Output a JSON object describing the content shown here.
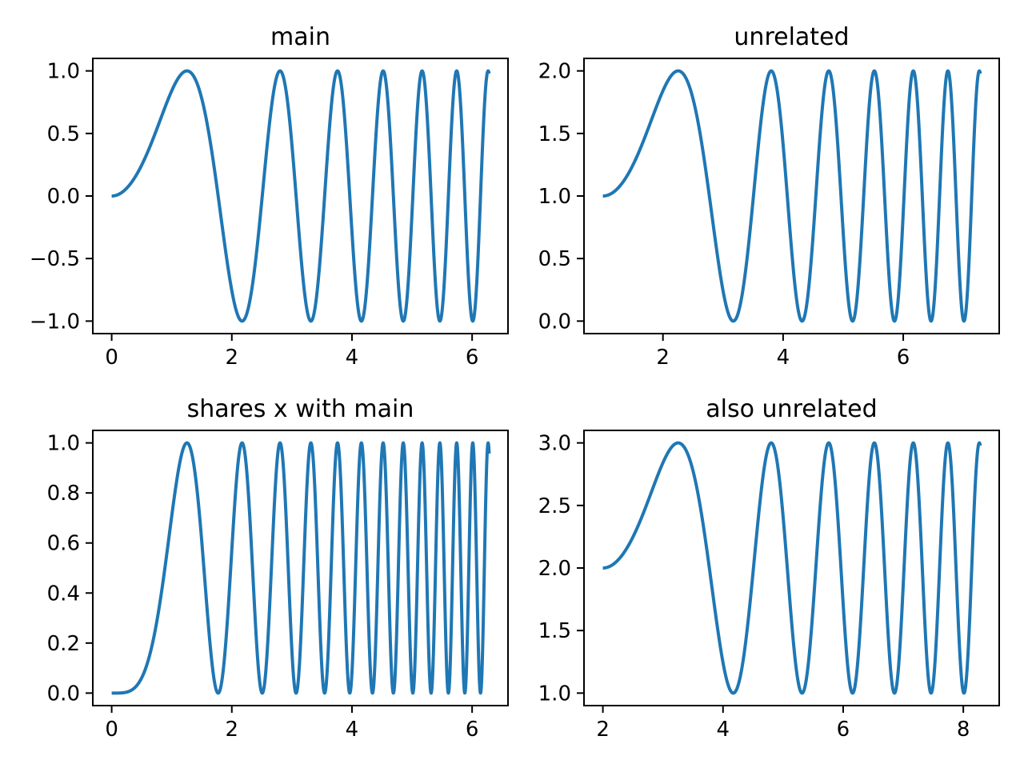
{
  "figure": {
    "background_color": "#ffffff",
    "text_color": "#000000",
    "layout": {
      "rows": 2,
      "cols": 2
    }
  },
  "chart_data": [
    {
      "type": "line",
      "title": "main",
      "curve": {
        "formula": "y = sin(x^2)",
        "x_shift": 0,
        "y_offset": 0,
        "squared": false,
        "x_start": 0,
        "x_end": 6.283185307
      },
      "xlim": [
        -0.3141592,
        6.5973445
      ],
      "ylim": [
        -1.1,
        1.1
      ],
      "xticks": {
        "values": [
          0,
          2,
          4,
          6
        ],
        "labels": [
          "0",
          "2",
          "4",
          "6"
        ]
      },
      "yticks": {
        "values": [
          -1.0,
          -0.5,
          0.0,
          0.5,
          1.0
        ],
        "labels": [
          "−1.0",
          "−0.5",
          "0.0",
          "0.5",
          "1.0"
        ]
      },
      "line_color": "#1f77b4",
      "grid": false,
      "legend": false
    },
    {
      "type": "line",
      "title": "unrelated",
      "curve": {
        "formula": "y = 1 + sin((x−1)^2)",
        "x_shift": 1,
        "y_offset": 1,
        "squared": false,
        "x_start": 1,
        "x_end": 7.283185307
      },
      "xlim": [
        0.6858407,
        7.5973445
      ],
      "ylim": [
        -0.1,
        2.1
      ],
      "xticks": {
        "values": [
          2,
          4,
          6
        ],
        "labels": [
          "2",
          "4",
          "6"
        ]
      },
      "yticks": {
        "values": [
          0.0,
          0.5,
          1.0,
          1.5,
          2.0
        ],
        "labels": [
          "0.0",
          "0.5",
          "1.0",
          "1.5",
          "2.0"
        ]
      },
      "line_color": "#1f77b4",
      "grid": false,
      "legend": false
    },
    {
      "type": "line",
      "title": "shares x with main",
      "curve": {
        "formula": "y = sin(x^2)^2",
        "x_shift": 0,
        "y_offset": 0,
        "squared": true,
        "x_start": 0,
        "x_end": 6.283185307
      },
      "xlim": [
        -0.3141592,
        6.5973445
      ],
      "ylim": [
        -0.05,
        1.05
      ],
      "xticks": {
        "values": [
          0,
          2,
          4,
          6
        ],
        "labels": [
          "0",
          "2",
          "4",
          "6"
        ]
      },
      "yticks": {
        "values": [
          0.0,
          0.2,
          0.4,
          0.6,
          0.8,
          1.0
        ],
        "labels": [
          "0.0",
          "0.2",
          "0.4",
          "0.6",
          "0.8",
          "1.0"
        ]
      },
      "line_color": "#1f77b4",
      "grid": false,
      "legend": false
    },
    {
      "type": "line",
      "title": "also unrelated",
      "curve": {
        "formula": "y = 2 + sin((x−2)^2)",
        "x_shift": 2,
        "y_offset": 2,
        "squared": false,
        "x_start": 2,
        "x_end": 8.283185307
      },
      "xlim": [
        1.6858407,
        8.5973445
      ],
      "ylim": [
        0.9,
        3.1
      ],
      "xticks": {
        "values": [
          2,
          4,
          6,
          8
        ],
        "labels": [
          "2",
          "4",
          "6",
          "8"
        ]
      },
      "yticks": {
        "values": [
          1.0,
          1.5,
          2.0,
          2.5,
          3.0
        ],
        "labels": [
          "1.0",
          "1.5",
          "2.0",
          "2.5",
          "3.0"
        ]
      },
      "line_color": "#1f77b4",
      "grid": false,
      "legend": false
    }
  ]
}
